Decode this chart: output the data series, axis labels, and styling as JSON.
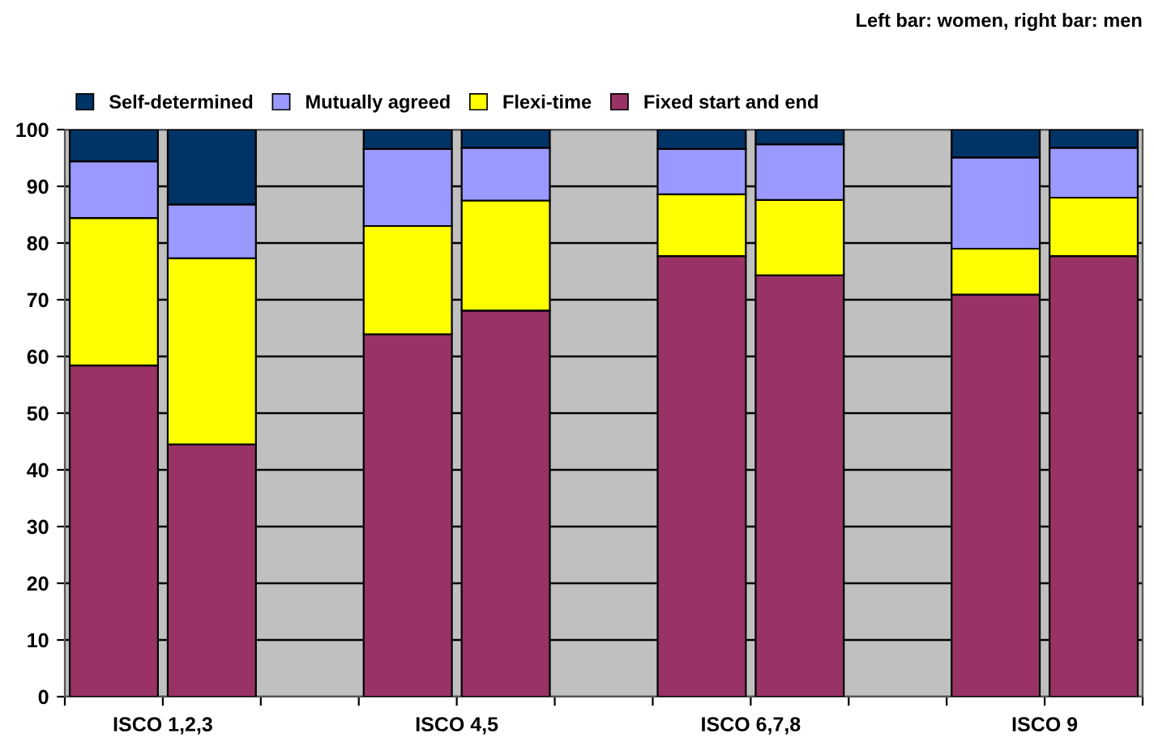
{
  "chart_data": {
    "type": "bar",
    "stacked": true,
    "categories": [
      "ISCO 1,2,3",
      null,
      null,
      "ISCO 4,5",
      null,
      null,
      "ISCO 6,7,8",
      null,
      null,
      "ISCO 9",
      null
    ],
    "series": [
      {
        "name": "Fixed start and end",
        "color": "#993366",
        "values": [
          58.4,
          44.5,
          null,
          63.9,
          68.1,
          null,
          77.7,
          74.3,
          null,
          70.9,
          77.7
        ]
      },
      {
        "name": "Flexi-time",
        "color": "#ffff00",
        "values": [
          26.0,
          32.8,
          null,
          19.1,
          19.4,
          null,
          10.9,
          13.3,
          null,
          8.1,
          10.3
        ]
      },
      {
        "name": "Mutually agreed",
        "color": "#9999ff",
        "values": [
          10.0,
          9.5,
          null,
          13.6,
          9.3,
          null,
          8.0,
          9.8,
          null,
          16.1,
          8.8
        ]
      },
      {
        "name": "Self-determined",
        "color": "#003366",
        "values": [
          5.6,
          13.2,
          null,
          3.4,
          3.2,
          null,
          3.4,
          2.6,
          null,
          4.9,
          3.2
        ]
      }
    ],
    "ylim": [
      0,
      100
    ],
    "yticks": [
      0,
      10,
      20,
      30,
      40,
      50,
      60,
      70,
      80,
      90,
      100
    ],
    "grid": "y",
    "legend": "top",
    "annotations": [
      "Left bar: women, right bar: men"
    ]
  }
}
